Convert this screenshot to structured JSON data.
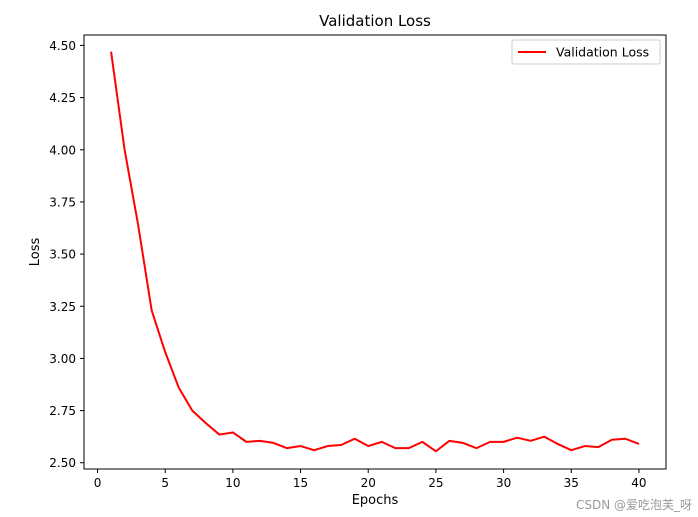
{
  "chart_data": {
    "type": "line",
    "title": "Validation Loss",
    "xlabel": "Epochs",
    "ylabel": "Loss",
    "xlim": [
      -1,
      42
    ],
    "ylim": [
      2.47,
      4.55
    ],
    "xticks": [
      0,
      5,
      10,
      15,
      20,
      25,
      30,
      35,
      40
    ],
    "xtick_labels": [
      "0",
      "5",
      "10",
      "15",
      "20",
      "25",
      "30",
      "35",
      "40"
    ],
    "yticks": [
      2.5,
      2.75,
      3.0,
      3.25,
      3.5,
      3.75,
      4.0,
      4.25,
      4.5
    ],
    "ytick_labels": [
      "2.50",
      "2.75",
      "3.00",
      "3.25",
      "3.50",
      "3.75",
      "4.00",
      "4.25",
      "4.50"
    ],
    "legend_position": "top-right",
    "grid": false,
    "series": [
      {
        "name": "Validation Loss",
        "color": "#ff0000",
        "x": [
          1,
          2,
          3,
          4,
          5,
          6,
          7,
          8,
          9,
          10,
          11,
          12,
          13,
          14,
          15,
          16,
          17,
          18,
          19,
          20,
          21,
          22,
          23,
          24,
          25,
          26,
          27,
          28,
          29,
          30,
          31,
          32,
          33,
          34,
          35,
          36,
          37,
          38,
          39,
          40
        ],
        "values": [
          4.47,
          4.0,
          3.64,
          3.23,
          3.03,
          2.86,
          2.75,
          2.69,
          2.635,
          2.645,
          2.6,
          2.605,
          2.595,
          2.57,
          2.58,
          2.56,
          2.58,
          2.585,
          2.615,
          2.58,
          2.6,
          2.57,
          2.57,
          2.6,
          2.555,
          2.605,
          2.595,
          2.57,
          2.6,
          2.6,
          2.62,
          2.605,
          2.625,
          2.59,
          2.56,
          2.58,
          2.575,
          2.61,
          2.615,
          2.59
        ]
      }
    ]
  },
  "watermark": {
    "text": "CSDN @爱吃泡芙_呀"
  }
}
